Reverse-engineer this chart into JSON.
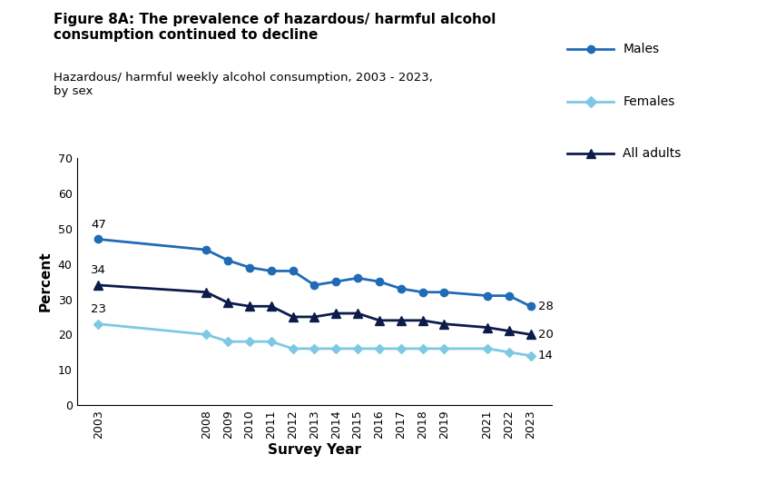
{
  "title_bold": "Figure 8A: The prevalence of hazardous/ harmful alcohol\nconsumption continued to decline",
  "subtitle": "Hazardous/ harmful weekly alcohol consumption, 2003 - 2023,\nby sex",
  "xlabel": "Survey Year",
  "ylabel": "Percent",
  "years": [
    2003,
    2008,
    2009,
    2010,
    2011,
    2012,
    2013,
    2014,
    2015,
    2016,
    2017,
    2018,
    2019,
    2021,
    2022,
    2023
  ],
  "males": [
    47,
    44,
    41,
    39,
    38,
    38,
    34,
    35,
    36,
    35,
    33,
    32,
    32,
    31,
    31,
    28
  ],
  "females": [
    23,
    20,
    18,
    18,
    18,
    16,
    16,
    16,
    16,
    16,
    16,
    16,
    16,
    16,
    15,
    14
  ],
  "all_adults": [
    34,
    32,
    29,
    28,
    28,
    25,
    25,
    26,
    26,
    24,
    24,
    24,
    23,
    22,
    21,
    20
  ],
  "males_color": "#1F6BB5",
  "females_color": "#7EC8E3",
  "all_adults_color": "#0D1B4B",
  "ylim": [
    0,
    70
  ],
  "yticks": [
    0,
    10,
    20,
    30,
    40,
    50,
    60,
    70
  ],
  "first_labels": {
    "males": 47,
    "females": 23,
    "all_adults": 34
  },
  "last_labels": {
    "males": 28,
    "females": 14,
    "all_adults": 20
  },
  "legend_labels": [
    "Males",
    "Females",
    "All adults"
  ],
  "background_color": "#ffffff"
}
